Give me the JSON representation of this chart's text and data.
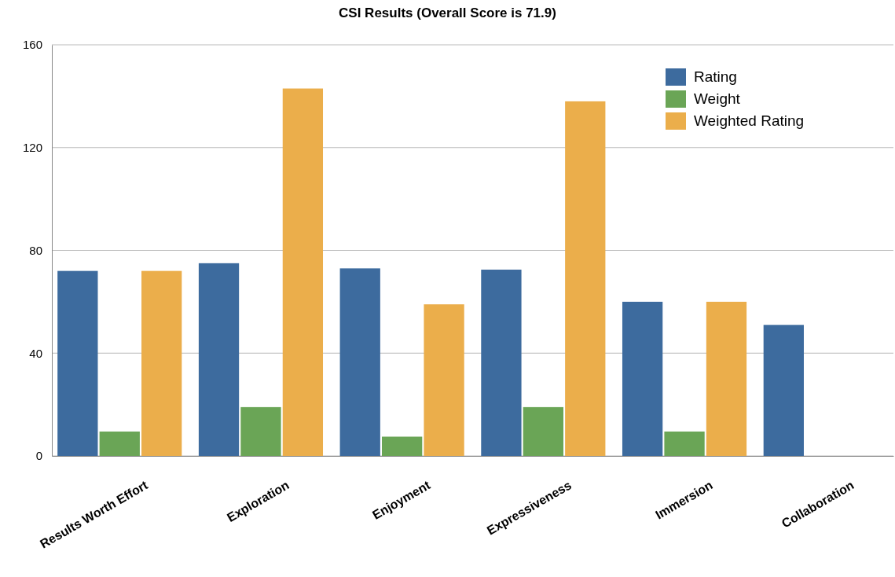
{
  "chart_data": {
    "type": "bar",
    "title": "CSI Results (Overall Score is 71.9)",
    "categories": [
      "Results Worth Effort",
      "Exploration",
      "Enjoyment",
      "Expressiveness",
      "Immersion",
      "Collaboration"
    ],
    "series": [
      {
        "name": "Rating",
        "color": "#3d6b9e",
        "values": [
          72,
          75,
          73,
          72.5,
          60,
          51
        ]
      },
      {
        "name": "Weight",
        "color": "#6aa556",
        "values": [
          9.5,
          19,
          7.5,
          19,
          9.5,
          0
        ]
      },
      {
        "name": "Weighted Rating",
        "color": "#ebae4b",
        "values": [
          72,
          143,
          59,
          138,
          60,
          0
        ]
      }
    ],
    "ylim": [
      0,
      160
    ],
    "yticks": [
      0,
      40,
      80,
      120,
      160
    ],
    "grid": "y",
    "legend": "top right"
  }
}
